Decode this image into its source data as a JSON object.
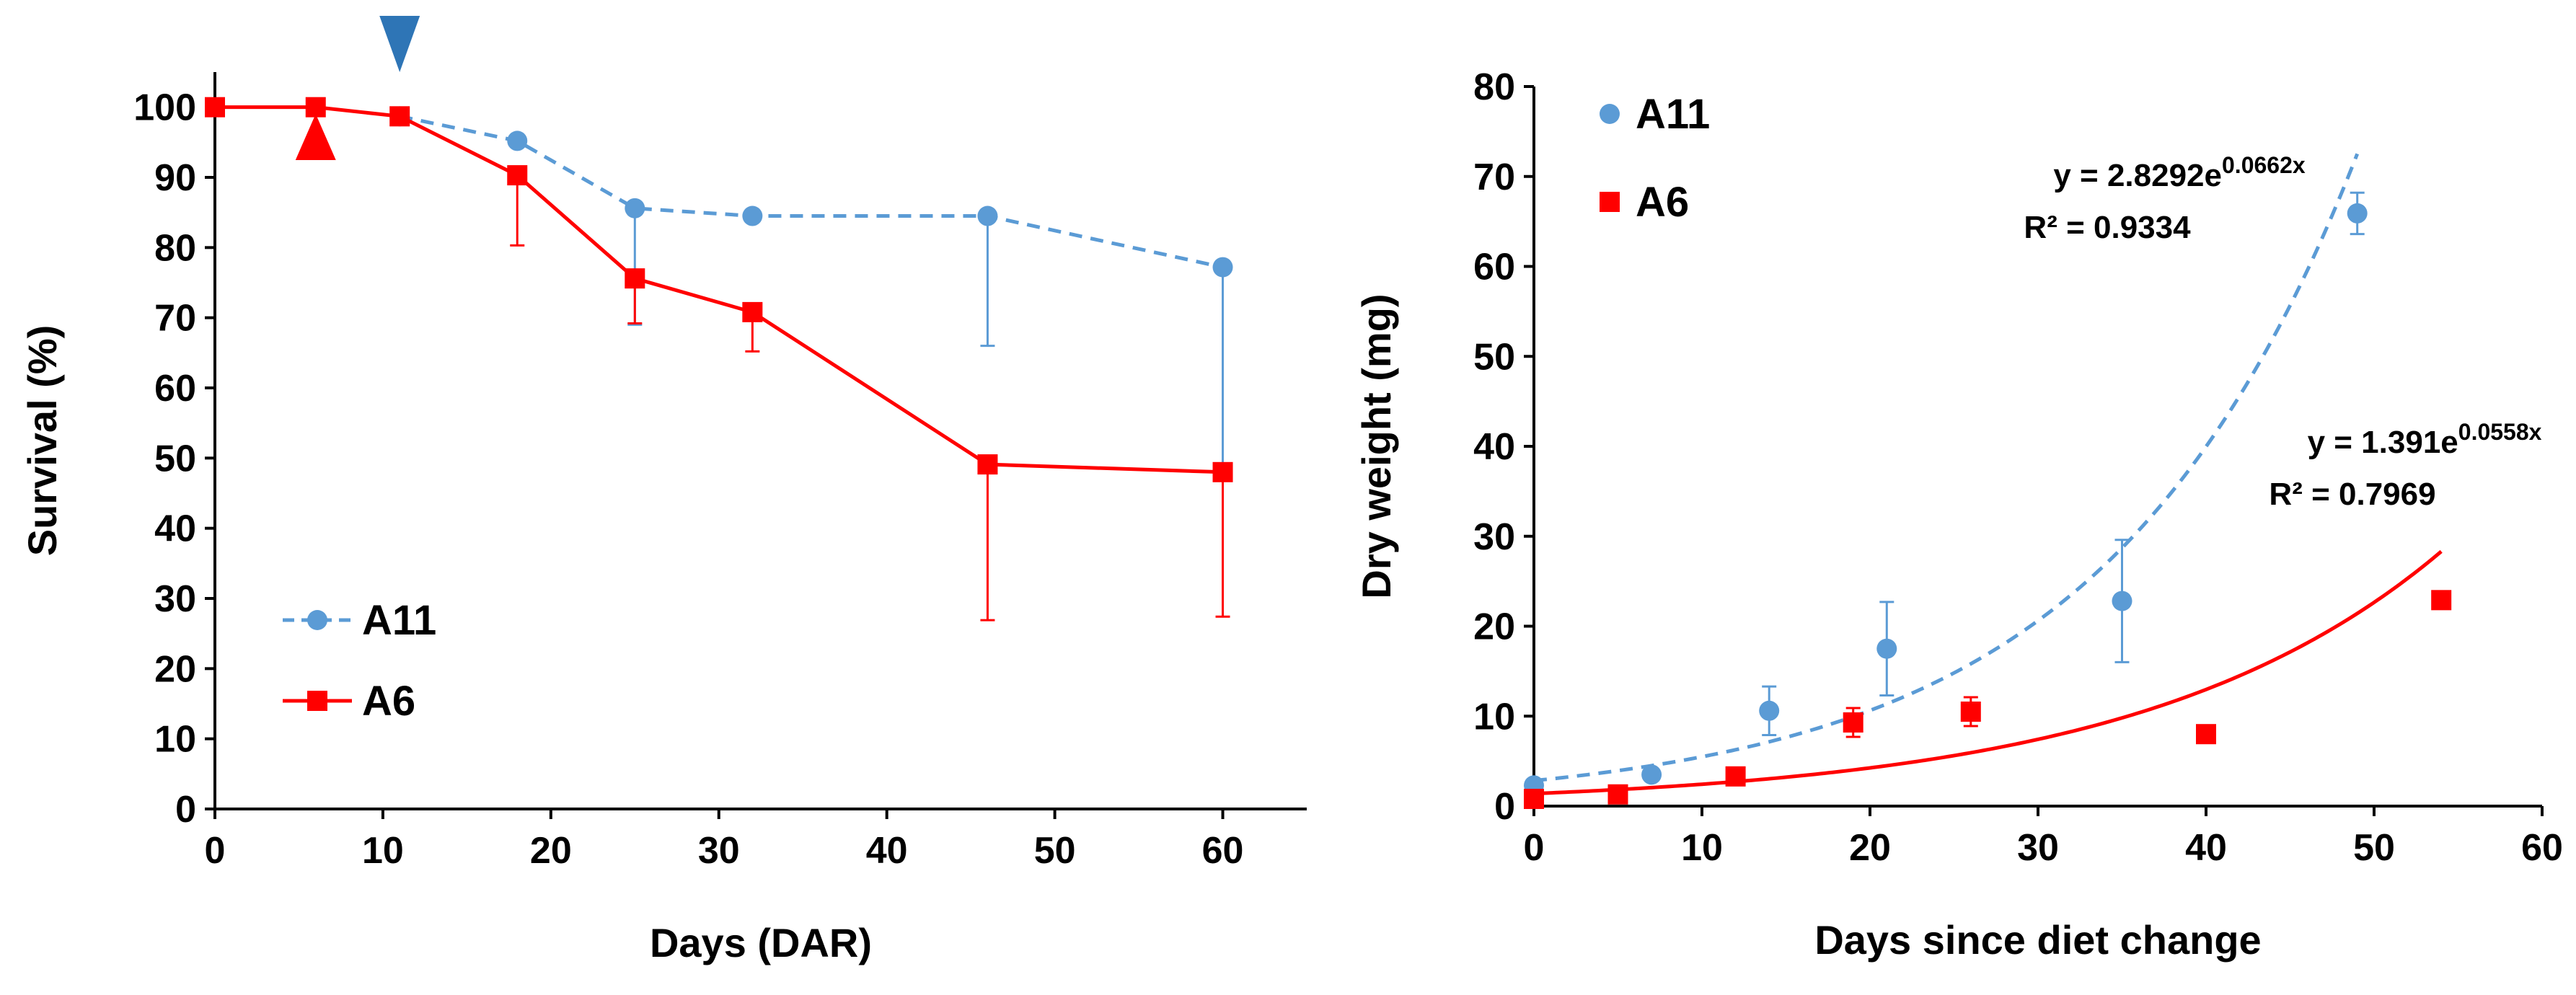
{
  "colors": {
    "a11": "#5b9bd5",
    "a6": "#ff0000",
    "arrow_blue": "#2e75b6",
    "arrow_red": "#ff0000",
    "axis": "#000000"
  },
  "chart_data": [
    {
      "type": "line",
      "xlabel": "Days (DAR)",
      "ylabel": "Survival (%)",
      "xlim": [
        0,
        65
      ],
      "ylim": [
        0,
        105
      ],
      "xticks": [
        "0",
        "10",
        "20",
        "30",
        "40",
        "50",
        "60"
      ],
      "yticks": [
        "0",
        "10",
        "20",
        "30",
        "40",
        "50",
        "60",
        "70",
        "80",
        "90",
        "100"
      ],
      "legend": {
        "position": "bottom-left",
        "labels": [
          "A11",
          "A6"
        ]
      },
      "markers": [
        {
          "name": "A11 marker",
          "x": 11,
          "direction": "down",
          "color": "arrow_blue"
        },
        {
          "name": "A6 marker",
          "x": 6,
          "direction": "up",
          "color": "arrow_red"
        }
      ],
      "series": [
        {
          "name": "A11",
          "style": "dashed",
          "marker": "circle",
          "x": [
            11,
            18,
            25,
            32,
            46,
            60
          ],
          "y": [
            98.7,
            95.2,
            85.6,
            84.5,
            84.5,
            77.2
          ],
          "err_low": [
            0,
            0,
            16.6,
            0,
            18.5,
            29.7
          ],
          "err_high": [
            0,
            0,
            0,
            0,
            0,
            0
          ]
        },
        {
          "name": "A6",
          "style": "solid",
          "marker": "square",
          "x": [
            0,
            6,
            11,
            18,
            25,
            32,
            46,
            60
          ],
          "y": [
            100,
            100,
            98.7,
            90.3,
            75.6,
            70.8,
            49.1,
            48
          ],
          "err_low": [
            0,
            0,
            0,
            10,
            6.4,
            5.6,
            22.2,
            20.6
          ],
          "err_high": [
            0,
            0,
            0,
            0,
            0,
            0,
            0,
            0
          ]
        }
      ]
    },
    {
      "type": "scatter",
      "xlabel": "Days since diet change",
      "ylabel": "Dry weight (mg)",
      "xlim": [
        0,
        60
      ],
      "ylim": [
        0,
        80
      ],
      "xticks": [
        "0",
        "10",
        "20",
        "30",
        "40",
        "50",
        "60"
      ],
      "yticks": [
        "0",
        "10",
        "20",
        "30",
        "40",
        "50",
        "60",
        "70",
        "80"
      ],
      "legend": {
        "position": "top-left",
        "labels": [
          "A11",
          "A6"
        ]
      },
      "series": [
        {
          "name": "A11",
          "marker": "circle",
          "x": [
            0,
            7,
            14,
            21,
            35,
            49
          ],
          "y": [
            2.3,
            3.5,
            10.6,
            17.5,
            22.8,
            65.9
          ],
          "err": [
            0.3,
            0.3,
            2.7,
            5.2,
            6.8,
            2.3
          ],
          "trend": {
            "kind": "exponential",
            "a": 2.8292,
            "b": 0.0662,
            "x_range": [
              0,
              49
            ],
            "style": "dashed",
            "eq_main": "y = 2.8292e",
            "eq_exp": "0.0662x",
            "r2": "R² = 0.9334"
          }
        },
        {
          "name": "A6",
          "marker": "square",
          "x": [
            0,
            5,
            12,
            19,
            26,
            40,
            54
          ],
          "y": [
            0.8,
            1.3,
            3.3,
            9.3,
            10.5,
            8,
            22.9
          ],
          "err": [
            0.2,
            0.2,
            0.3,
            1.6,
            1.6,
            0.5,
            0.8
          ],
          "trend": {
            "kind": "exponential",
            "a": 1.391,
            "b": 0.0558,
            "x_range": [
              0,
              54
            ],
            "style": "solid",
            "eq_main": "y = 1.391e",
            "eq_exp": "0.0558x",
            "r2": "R² = 0.7969"
          }
        }
      ]
    }
  ]
}
